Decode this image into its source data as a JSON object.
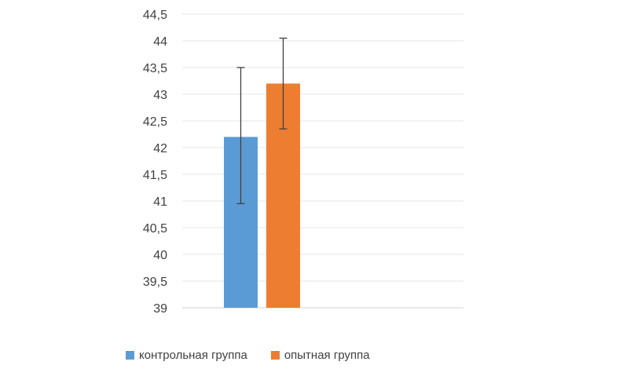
{
  "chart_data": {
    "type": "bar",
    "y_ticks": [
      "39",
      "39,5",
      "40",
      "40,5",
      "41",
      "41,5",
      "42",
      "42,5",
      "43",
      "43,5",
      "44",
      "44,5"
    ],
    "ylim": [
      39,
      44.5
    ],
    "grid": true,
    "legend_position": "bottom",
    "series": [
      {
        "name": "контрольная группа",
        "value": 42.2,
        "error_low": 40.95,
        "error_high": 43.5,
        "color": "#5b9bd5"
      },
      {
        "name": "опытная группа",
        "value": 43.2,
        "error_low": 42.35,
        "error_high": 44.05,
        "color": "#ed7d31"
      }
    ]
  }
}
